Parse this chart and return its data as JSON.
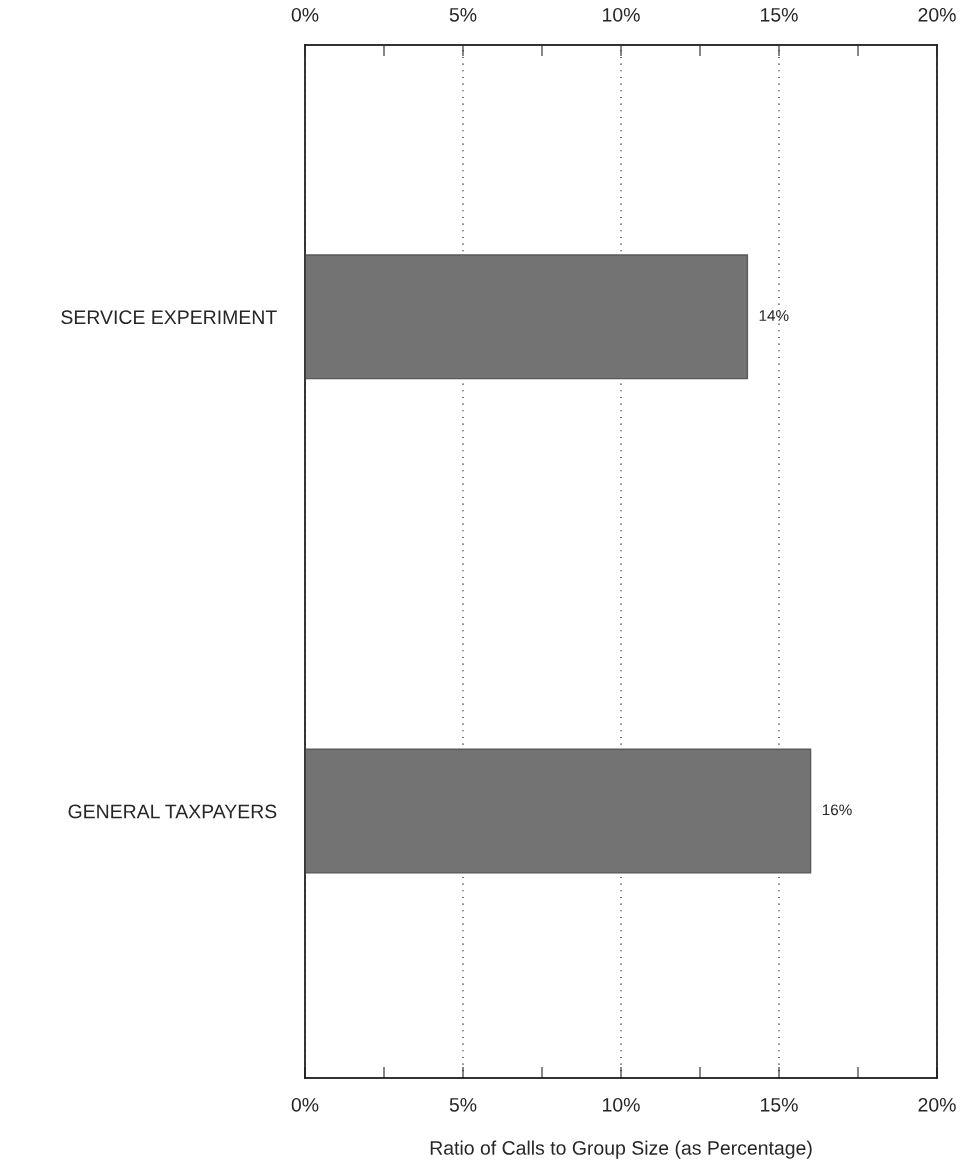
{
  "chart_data": {
    "type": "bar",
    "orientation": "horizontal",
    "categories": [
      "SERVICE EXPERIMENT",
      "GENERAL TAXPAYERS"
    ],
    "values": [
      14,
      16
    ],
    "value_labels": [
      "14%",
      "16%"
    ],
    "color": "#737373",
    "xlabel": "Ratio of Calls to Group Size (as Percentage)",
    "xlim": [
      0,
      20
    ],
    "xticks": [
      {
        "value": 0,
        "label": "0%"
      },
      {
        "value": 2.5,
        "label": null
      },
      {
        "value": 5,
        "label": "5%"
      },
      {
        "value": 7.5,
        "label": null
      },
      {
        "value": 10,
        "label": "10%"
      },
      {
        "value": 12.5,
        "label": null
      },
      {
        "value": 15,
        "label": "15%"
      },
      {
        "value": 17.5,
        "label": null
      },
      {
        "value": 20,
        "label": "20%"
      }
    ],
    "x2lim": [
      0,
      20
    ],
    "x2ticks": [
      {
        "value": 0,
        "label": "0%"
      },
      {
        "value": 2.5,
        "label": null
      },
      {
        "value": 5,
        "label": "5%"
      },
      {
        "value": 7.5,
        "label": null
      },
      {
        "value": 10,
        "label": "10%"
      },
      {
        "value": 12.5,
        "label": null
      },
      {
        "value": 15,
        "label": "15%"
      },
      {
        "value": 17.5,
        "label": null
      },
      {
        "value": 20,
        "label": "20%"
      }
    ],
    "grid": "x"
  }
}
